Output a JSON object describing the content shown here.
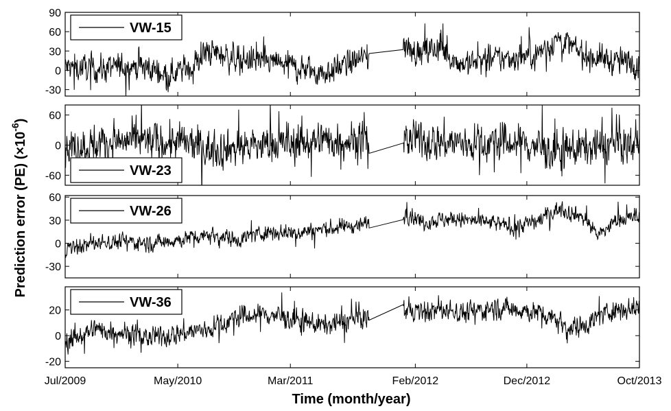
{
  "chart_data": [
    {
      "type": "line",
      "series": [
        {
          "name": "VW-15"
        }
      ],
      "legend": "top-left",
      "xlim": [
        "Jul/2009",
        "Oct/2013"
      ],
      "ylim": [
        -40,
        90
      ],
      "yticks": [
        -30,
        0,
        30,
        60,
        90
      ],
      "gap": [
        "Oct/2011",
        "Jan/2012"
      ],
      "drift": [
        [
          0,
          5
        ],
        [
          0.06,
          2
        ],
        [
          0.12,
          8
        ],
        [
          0.18,
          -5
        ],
        [
          0.22,
          5
        ],
        [
          0.25,
          30
        ],
        [
          0.3,
          18
        ],
        [
          0.38,
          10
        ],
        [
          0.45,
          -5
        ],
        [
          0.52,
          20
        ],
        [
          0.57,
          45
        ],
        [
          0.62,
          25
        ],
        [
          0.65,
          35
        ],
        [
          0.69,
          10
        ],
        [
          0.73,
          15
        ],
        [
          0.78,
          20
        ],
        [
          0.82,
          25
        ],
        [
          0.86,
          50
        ],
        [
          0.9,
          25
        ],
        [
          0.95,
          15
        ],
        [
          1,
          10
        ]
      ]
    },
    {
      "type": "line",
      "series": [
        {
          "name": "VW-23"
        }
      ],
      "legend": "bottom-left",
      "xlim": [
        "Jul/2009",
        "Oct/2013"
      ],
      "ylim": [
        -80,
        80
      ],
      "yticks": [
        -60,
        0,
        60
      ],
      "gap": [
        "Oct/2011",
        "Jan/2012"
      ],
      "drift": [
        [
          0,
          -5
        ],
        [
          0.1,
          8
        ],
        [
          0.2,
          5
        ],
        [
          0.25,
          -8
        ],
        [
          0.35,
          0
        ],
        [
          0.45,
          10
        ],
        [
          0.55,
          12
        ],
        [
          0.62,
          10
        ],
        [
          0.7,
          3
        ],
        [
          0.8,
          5
        ],
        [
          0.85,
          -15
        ],
        [
          0.9,
          -5
        ],
        [
          0.95,
          0
        ],
        [
          1,
          3
        ]
      ]
    },
    {
      "type": "line",
      "series": [
        {
          "name": "VW-26"
        }
      ],
      "legend": "top-left",
      "xlim": [
        "Jul/2009",
        "Oct/2013"
      ],
      "ylim": [
        -45,
        62
      ],
      "yticks": [
        -30,
        0,
        30,
        60
      ],
      "gap": [
        "Oct/2011",
        "Jan/2012"
      ],
      "drift": [
        [
          0,
          -8
        ],
        [
          0.05,
          0
        ],
        [
          0.1,
          3
        ],
        [
          0.15,
          0
        ],
        [
          0.2,
          5
        ],
        [
          0.25,
          12
        ],
        [
          0.3,
          5
        ],
        [
          0.35,
          15
        ],
        [
          0.4,
          14
        ],
        [
          0.45,
          18
        ],
        [
          0.52,
          25
        ],
        [
          0.6,
          38
        ],
        [
          0.62,
          28
        ],
        [
          0.67,
          32
        ],
        [
          0.72,
          28
        ],
        [
          0.78,
          22
        ],
        [
          0.82,
          28
        ],
        [
          0.86,
          45
        ],
        [
          0.9,
          35
        ],
        [
          0.93,
          10
        ],
        [
          0.96,
          30
        ],
        [
          1,
          35
        ]
      ]
    },
    {
      "type": "line",
      "series": [
        {
          "name": "VW-36"
        }
      ],
      "legend": "top-left",
      "xlim": [
        "Jul/2009",
        "Oct/2013"
      ],
      "ylim": [
        -25,
        38
      ],
      "yticks": [
        -20,
        0,
        20
      ],
      "xticks": [
        "Jul/2009",
        "May/2010",
        "Mar/2011",
        "Feb/2012",
        "Dec/2012",
        "Oct/2013"
      ],
      "xlabel": "Time (month/year)",
      "gap": [
        "Oct/2011",
        "Jan/2012"
      ],
      "drift": [
        [
          0,
          -5
        ],
        [
          0.05,
          5
        ],
        [
          0.1,
          3
        ],
        [
          0.15,
          -2
        ],
        [
          0.2,
          2
        ],
        [
          0.25,
          5
        ],
        [
          0.3,
          14
        ],
        [
          0.35,
          17
        ],
        [
          0.4,
          12
        ],
        [
          0.45,
          8
        ],
        [
          0.52,
          14
        ],
        [
          0.57,
          22
        ],
        [
          0.62,
          18
        ],
        [
          0.65,
          20
        ],
        [
          0.7,
          18
        ],
        [
          0.75,
          22
        ],
        [
          0.8,
          20
        ],
        [
          0.85,
          15
        ],
        [
          0.88,
          5
        ],
        [
          0.92,
          12
        ],
        [
          0.95,
          20
        ],
        [
          1,
          22
        ]
      ]
    }
  ],
  "ylabel": "Prediction error (PE) (×10",
  "ylabel_exp": "-6",
  "ylabel_end": ")",
  "style": {
    "line_color": "#000000",
    "axis_color": "#000000",
    "background": "#ffffff"
  }
}
